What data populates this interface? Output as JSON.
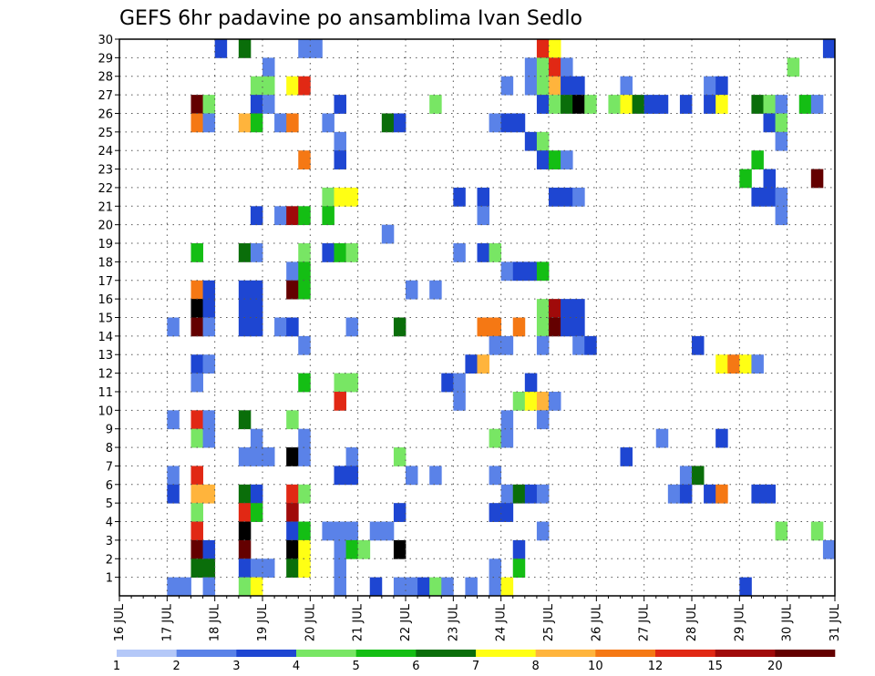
{
  "chart_data": {
    "type": "heatmap",
    "title": "GEFS 6hr padavine po ansamblima Ivan Sedlo",
    "xlabel": "",
    "ylabel": "",
    "x_ticks": [
      "16 JUL",
      "17 JUL",
      "18 JUL",
      "19 JUL",
      "20 JUL",
      "21 JUL",
      "22 JUL",
      "23 JUL",
      "24 JUL",
      "25 JUL",
      "26 JUL",
      "27 JUL",
      "28 JUL",
      "29 JUL",
      "30 JUL",
      "31 JUL"
    ],
    "x_unit": "6hr step",
    "xlim": [
      0,
      60
    ],
    "y_ticks": [
      1,
      2,
      3,
      4,
      5,
      6,
      7,
      8,
      9,
      10,
      11,
      12,
      13,
      14,
      15,
      16,
      17,
      18,
      19,
      20,
      21,
      22,
      23,
      24,
      25,
      26,
      27,
      28,
      29,
      30
    ],
    "ylim": [
      0,
      30
    ],
    "grid": true,
    "colorbar": {
      "placement": "bottom",
      "boundaries": [
        "1",
        "2",
        "3",
        "4",
        "5",
        "6",
        "7",
        "8",
        "10",
        "12",
        "15",
        "20"
      ],
      "colors": [
        "#b4c8f8",
        "#5a82e8",
        "#1e46d2",
        "#78e664",
        "#14be14",
        "#0a6e0a",
        "#ffff14",
        "#ffb43c",
        "#f57814",
        "#e12814",
        "#a00a0a",
        "#640000"
      ]
    },
    "cells": [
      {
        "x": 8,
        "y": 29,
        "c": 2
      },
      {
        "x": 10,
        "y": 29,
        "c": 5
      },
      {
        "x": 15,
        "y": 29,
        "c": 1
      },
      {
        "x": 16,
        "y": 29,
        "c": 1
      },
      {
        "x": 35,
        "y": 29,
        "c": 9
      },
      {
        "x": 36,
        "y": 29,
        "c": 6
      },
      {
        "x": 59,
        "y": 29,
        "c": 2
      },
      {
        "x": 12,
        "y": 28,
        "c": 1
      },
      {
        "x": 34,
        "y": 28,
        "c": 1
      },
      {
        "x": 35,
        "y": 28,
        "c": 3
      },
      {
        "x": 36,
        "y": 28,
        "c": 9
      },
      {
        "x": 37,
        "y": 28,
        "c": 1
      },
      {
        "x": 56,
        "y": 28,
        "c": 3
      },
      {
        "x": 11,
        "y": 27,
        "c": 3
      },
      {
        "x": 12,
        "y": 27,
        "c": 3
      },
      {
        "x": 14,
        "y": 27,
        "c": 6
      },
      {
        "x": 15,
        "y": 27,
        "c": 9
      },
      {
        "x": 32,
        "y": 27,
        "c": 1
      },
      {
        "x": 34,
        "y": 27,
        "c": 1
      },
      {
        "x": 35,
        "y": 27,
        "c": 3
      },
      {
        "x": 36,
        "y": 27,
        "c": 7
      },
      {
        "x": 37,
        "y": 27,
        "c": 2
      },
      {
        "x": 38,
        "y": 27,
        "c": 2
      },
      {
        "x": 42,
        "y": 27,
        "c": 1
      },
      {
        "x": 49,
        "y": 27,
        "c": 1
      },
      {
        "x": 50,
        "y": 27,
        "c": 2
      },
      {
        "x": 6,
        "y": 26,
        "c": 11
      },
      {
        "x": 7,
        "y": 26,
        "c": 3
      },
      {
        "x": 11,
        "y": 26,
        "c": 2
      },
      {
        "x": 12,
        "y": 26,
        "c": 1
      },
      {
        "x": 18,
        "y": 26,
        "c": 2
      },
      {
        "x": 26,
        "y": 26,
        "c": 3
      },
      {
        "x": 35,
        "y": 26,
        "c": 2
      },
      {
        "x": 36,
        "y": 26,
        "c": 3
      },
      {
        "x": 37,
        "y": 26,
        "c": 5
      },
      {
        "x": 38,
        "y": 26,
        "c": 12
      },
      {
        "x": 39,
        "y": 26,
        "c": 3
      },
      {
        "x": 41,
        "y": 26,
        "c": 3
      },
      {
        "x": 42,
        "y": 26,
        "c": 6
      },
      {
        "x": 43,
        "y": 26,
        "c": 5
      },
      {
        "x": 44,
        "y": 26,
        "c": 2
      },
      {
        "x": 45,
        "y": 26,
        "c": 2
      },
      {
        "x": 47,
        "y": 26,
        "c": 2
      },
      {
        "x": 49,
        "y": 26,
        "c": 2
      },
      {
        "x": 50,
        "y": 26,
        "c": 6
      },
      {
        "x": 53,
        "y": 26,
        "c": 5
      },
      {
        "x": 54,
        "y": 26,
        "c": 3
      },
      {
        "x": 55,
        "y": 26,
        "c": 1
      },
      {
        "x": 57,
        "y": 26,
        "c": 4
      },
      {
        "x": 58,
        "y": 26,
        "c": 1
      },
      {
        "x": 6,
        "y": 25,
        "c": 8
      },
      {
        "x": 7,
        "y": 25,
        "c": 1
      },
      {
        "x": 10,
        "y": 25,
        "c": 7
      },
      {
        "x": 11,
        "y": 25,
        "c": 4
      },
      {
        "x": 13,
        "y": 25,
        "c": 1
      },
      {
        "x": 14,
        "y": 25,
        "c": 8
      },
      {
        "x": 17,
        "y": 25,
        "c": 1
      },
      {
        "x": 22,
        "y": 25,
        "c": 5
      },
      {
        "x": 23,
        "y": 25,
        "c": 2
      },
      {
        "x": 31,
        "y": 25,
        "c": 1
      },
      {
        "x": 32,
        "y": 25,
        "c": 2
      },
      {
        "x": 33,
        "y": 25,
        "c": 2
      },
      {
        "x": 54,
        "y": 25,
        "c": 2
      },
      {
        "x": 55,
        "y": 25,
        "c": 3
      },
      {
        "x": 18,
        "y": 24,
        "c": 1
      },
      {
        "x": 34,
        "y": 24,
        "c": 2
      },
      {
        "x": 35,
        "y": 24,
        "c": 3
      },
      {
        "x": 55,
        "y": 24,
        "c": 1
      },
      {
        "x": 15,
        "y": 23,
        "c": 8
      },
      {
        "x": 18,
        "y": 23,
        "c": 2
      },
      {
        "x": 35,
        "y": 23,
        "c": 2
      },
      {
        "x": 36,
        "y": 23,
        "c": 4
      },
      {
        "x": 37,
        "y": 23,
        "c": 1
      },
      {
        "x": 53,
        "y": 23,
        "c": 4
      },
      {
        "x": 52,
        "y": 22,
        "c": 4
      },
      {
        "x": 54,
        "y": 22,
        "c": 2
      },
      {
        "x": 58,
        "y": 22,
        "c": 11
      },
      {
        "x": 17,
        "y": 21,
        "c": 3
      },
      {
        "x": 18,
        "y": 21,
        "c": 6
      },
      {
        "x": 19,
        "y": 21,
        "c": 6
      },
      {
        "x": 28,
        "y": 21,
        "c": 2
      },
      {
        "x": 30,
        "y": 21,
        "c": 2
      },
      {
        "x": 36,
        "y": 21,
        "c": 2
      },
      {
        "x": 37,
        "y": 21,
        "c": 2
      },
      {
        "x": 38,
        "y": 21,
        "c": 1
      },
      {
        "x": 53,
        "y": 21,
        "c": 2
      },
      {
        "x": 54,
        "y": 21,
        "c": 2
      },
      {
        "x": 55,
        "y": 21,
        "c": 1
      },
      {
        "x": 11,
        "y": 20,
        "c": 2
      },
      {
        "x": 13,
        "y": 20,
        "c": 1
      },
      {
        "x": 14,
        "y": 20,
        "c": 10
      },
      {
        "x": 15,
        "y": 20,
        "c": 4
      },
      {
        "x": 17,
        "y": 20,
        "c": 4
      },
      {
        "x": 30,
        "y": 20,
        "c": 1
      },
      {
        "x": 55,
        "y": 20,
        "c": 1
      },
      {
        "x": 22,
        "y": 19,
        "c": 1
      },
      {
        "x": 6,
        "y": 18,
        "c": 4
      },
      {
        "x": 10,
        "y": 18,
        "c": 5
      },
      {
        "x": 11,
        "y": 18,
        "c": 1
      },
      {
        "x": 15,
        "y": 18,
        "c": 3
      },
      {
        "x": 17,
        "y": 18,
        "c": 2
      },
      {
        "x": 18,
        "y": 18,
        "c": 4
      },
      {
        "x": 19,
        "y": 18,
        "c": 3
      },
      {
        "x": 28,
        "y": 18,
        "c": 1
      },
      {
        "x": 30,
        "y": 18,
        "c": 2
      },
      {
        "x": 31,
        "y": 18,
        "c": 3
      },
      {
        "x": 14,
        "y": 17,
        "c": 1
      },
      {
        "x": 15,
        "y": 17,
        "c": 4
      },
      {
        "x": 32,
        "y": 17,
        "c": 1
      },
      {
        "x": 33,
        "y": 17,
        "c": 2
      },
      {
        "x": 34,
        "y": 17,
        "c": 2
      },
      {
        "x": 35,
        "y": 17,
        "c": 4
      },
      {
        "x": 6,
        "y": 16,
        "c": 8
      },
      {
        "x": 7,
        "y": 16,
        "c": 2
      },
      {
        "x": 10,
        "y": 16,
        "c": 2
      },
      {
        "x": 11,
        "y": 16,
        "c": 2
      },
      {
        "x": 14,
        "y": 16,
        "c": 11
      },
      {
        "x": 15,
        "y": 16,
        "c": 4
      },
      {
        "x": 24,
        "y": 16,
        "c": 1
      },
      {
        "x": 26,
        "y": 16,
        "c": 1
      },
      {
        "x": 6,
        "y": 15,
        "c": 12
      },
      {
        "x": 7,
        "y": 15,
        "c": 2
      },
      {
        "x": 10,
        "y": 15,
        "c": 2
      },
      {
        "x": 11,
        "y": 15,
        "c": 2
      },
      {
        "x": 35,
        "y": 15,
        "c": 3
      },
      {
        "x": 36,
        "y": 15,
        "c": 10
      },
      {
        "x": 37,
        "y": 15,
        "c": 2
      },
      {
        "x": 38,
        "y": 15,
        "c": 2
      },
      {
        "x": 4,
        "y": 14,
        "c": 1
      },
      {
        "x": 6,
        "y": 14,
        "c": 11
      },
      {
        "x": 7,
        "y": 14,
        "c": 1
      },
      {
        "x": 10,
        "y": 14,
        "c": 2
      },
      {
        "x": 11,
        "y": 14,
        "c": 2
      },
      {
        "x": 13,
        "y": 14,
        "c": 1
      },
      {
        "x": 14,
        "y": 14,
        "c": 2
      },
      {
        "x": 19,
        "y": 14,
        "c": 1
      },
      {
        "x": 23,
        "y": 14,
        "c": 5
      },
      {
        "x": 30,
        "y": 14,
        "c": 8
      },
      {
        "x": 31,
        "y": 14,
        "c": 8
      },
      {
        "x": 33,
        "y": 14,
        "c": 8
      },
      {
        "x": 35,
        "y": 14,
        "c": 3
      },
      {
        "x": 36,
        "y": 14,
        "c": 11
      },
      {
        "x": 37,
        "y": 14,
        "c": 2
      },
      {
        "x": 38,
        "y": 14,
        "c": 2
      },
      {
        "x": 15,
        "y": 13,
        "c": 1
      },
      {
        "x": 31,
        "y": 13,
        "c": 1
      },
      {
        "x": 32,
        "y": 13,
        "c": 1
      },
      {
        "x": 35,
        "y": 13,
        "c": 1
      },
      {
        "x": 38,
        "y": 13,
        "c": 1
      },
      {
        "x": 39,
        "y": 13,
        "c": 2
      },
      {
        "x": 48,
        "y": 13,
        "c": 2
      },
      {
        "x": 6,
        "y": 12,
        "c": 2
      },
      {
        "x": 7,
        "y": 12,
        "c": 1
      },
      {
        "x": 29,
        "y": 12,
        "c": 2
      },
      {
        "x": 30,
        "y": 12,
        "c": 7
      },
      {
        "x": 50,
        "y": 12,
        "c": 6
      },
      {
        "x": 51,
        "y": 12,
        "c": 8
      },
      {
        "x": 52,
        "y": 12,
        "c": 6
      },
      {
        "x": 53,
        "y": 12,
        "c": 1
      },
      {
        "x": 6,
        "y": 11,
        "c": 1
      },
      {
        "x": 15,
        "y": 11,
        "c": 4
      },
      {
        "x": 18,
        "y": 11,
        "c": 3
      },
      {
        "x": 19,
        "y": 11,
        "c": 3
      },
      {
        "x": 27,
        "y": 11,
        "c": 2
      },
      {
        "x": 28,
        "y": 11,
        "c": 1
      },
      {
        "x": 34,
        "y": 11,
        "c": 2
      },
      {
        "x": 18,
        "y": 10,
        "c": 9
      },
      {
        "x": 28,
        "y": 10,
        "c": 1
      },
      {
        "x": 33,
        "y": 10,
        "c": 3
      },
      {
        "x": 34,
        "y": 10,
        "c": 6
      },
      {
        "x": 35,
        "y": 10,
        "c": 7
      },
      {
        "x": 36,
        "y": 10,
        "c": 1
      },
      {
        "x": 4,
        "y": 9,
        "c": 1
      },
      {
        "x": 6,
        "y": 9,
        "c": 9
      },
      {
        "x": 7,
        "y": 9,
        "c": 1
      },
      {
        "x": 10,
        "y": 9,
        "c": 5
      },
      {
        "x": 14,
        "y": 9,
        "c": 3
      },
      {
        "x": 32,
        "y": 9,
        "c": 1
      },
      {
        "x": 35,
        "y": 9,
        "c": 1
      },
      {
        "x": 6,
        "y": 8,
        "c": 3
      },
      {
        "x": 7,
        "y": 8,
        "c": 1
      },
      {
        "x": 11,
        "y": 8,
        "c": 1
      },
      {
        "x": 15,
        "y": 8,
        "c": 1
      },
      {
        "x": 31,
        "y": 8,
        "c": 3
      },
      {
        "x": 32,
        "y": 8,
        "c": 1
      },
      {
        "x": 45,
        "y": 8,
        "c": 1
      },
      {
        "x": 50,
        "y": 8,
        "c": 2
      },
      {
        "x": 10,
        "y": 7,
        "c": 1
      },
      {
        "x": 11,
        "y": 7,
        "c": 1
      },
      {
        "x": 12,
        "y": 7,
        "c": 1
      },
      {
        "x": 14,
        "y": 7,
        "c": 12
      },
      {
        "x": 15,
        "y": 7,
        "c": 1
      },
      {
        "x": 19,
        "y": 7,
        "c": 1
      },
      {
        "x": 23,
        "y": 7,
        "c": 3
      },
      {
        "x": 42,
        "y": 7,
        "c": 2
      },
      {
        "x": 4,
        "y": 6,
        "c": 1
      },
      {
        "x": 6,
        "y": 6,
        "c": 9
      },
      {
        "x": 18,
        "y": 6,
        "c": 2
      },
      {
        "x": 19,
        "y": 6,
        "c": 2
      },
      {
        "x": 24,
        "y": 6,
        "c": 1
      },
      {
        "x": 26,
        "y": 6,
        "c": 1
      },
      {
        "x": 31,
        "y": 6,
        "c": 1
      },
      {
        "x": 47,
        "y": 6,
        "c": 1
      },
      {
        "x": 48,
        "y": 6,
        "c": 5
      },
      {
        "x": 4,
        "y": 5,
        "c": 2
      },
      {
        "x": 6,
        "y": 5,
        "c": 7
      },
      {
        "x": 7,
        "y": 5,
        "c": 7
      },
      {
        "x": 10,
        "y": 5,
        "c": 5
      },
      {
        "x": 11,
        "y": 5,
        "c": 2
      },
      {
        "x": 14,
        "y": 5,
        "c": 9
      },
      {
        "x": 15,
        "y": 5,
        "c": 3
      },
      {
        "x": 32,
        "y": 5,
        "c": 1
      },
      {
        "x": 33,
        "y": 5,
        "c": 5
      },
      {
        "x": 34,
        "y": 5,
        "c": 2
      },
      {
        "x": 35,
        "y": 5,
        "c": 1
      },
      {
        "x": 46,
        "y": 5,
        "c": 1
      },
      {
        "x": 47,
        "y": 5,
        "c": 2
      },
      {
        "x": 49,
        "y": 5,
        "c": 2
      },
      {
        "x": 50,
        "y": 5,
        "c": 8
      },
      {
        "x": 53,
        "y": 5,
        "c": 2
      },
      {
        "x": 54,
        "y": 5,
        "c": 2
      },
      {
        "x": 6,
        "y": 4,
        "c": 3
      },
      {
        "x": 10,
        "y": 4,
        "c": 9
      },
      {
        "x": 11,
        "y": 4,
        "c": 4
      },
      {
        "x": 14,
        "y": 4,
        "c": 10
      },
      {
        "x": 23,
        "y": 4,
        "c": 2
      },
      {
        "x": 31,
        "y": 4,
        "c": 2
      },
      {
        "x": 32,
        "y": 4,
        "c": 2
      },
      {
        "x": 6,
        "y": 3,
        "c": 9
      },
      {
        "x": 10,
        "y": 3,
        "c": 12
      },
      {
        "x": 14,
        "y": 3,
        "c": 2
      },
      {
        "x": 15,
        "y": 3,
        "c": 4
      },
      {
        "x": 17,
        "y": 3,
        "c": 1
      },
      {
        "x": 18,
        "y": 3,
        "c": 1
      },
      {
        "x": 19,
        "y": 3,
        "c": 1
      },
      {
        "x": 21,
        "y": 3,
        "c": 1
      },
      {
        "x": 22,
        "y": 3,
        "c": 1
      },
      {
        "x": 35,
        "y": 3,
        "c": 1
      },
      {
        "x": 55,
        "y": 3,
        "c": 3
      },
      {
        "x": 58,
        "y": 3,
        "c": 3
      },
      {
        "x": 6,
        "y": 2,
        "c": 11
      },
      {
        "x": 7,
        "y": 2,
        "c": 2
      },
      {
        "x": 10,
        "y": 2,
        "c": 11
      },
      {
        "x": 14,
        "y": 2,
        "c": 12
      },
      {
        "x": 15,
        "y": 2,
        "c": 6
      },
      {
        "x": 18,
        "y": 2,
        "c": 1
      },
      {
        "x": 19,
        "y": 2,
        "c": 4
      },
      {
        "x": 20,
        "y": 2,
        "c": 3
      },
      {
        "x": 23,
        "y": 2,
        "c": 12
      },
      {
        "x": 33,
        "y": 2,
        "c": 2
      },
      {
        "x": 59,
        "y": 2,
        "c": 1
      },
      {
        "x": 6,
        "y": 1,
        "c": 5
      },
      {
        "x": 7,
        "y": 1,
        "c": 5
      },
      {
        "x": 10,
        "y": 1,
        "c": 2
      },
      {
        "x": 11,
        "y": 1,
        "c": 1
      },
      {
        "x": 12,
        "y": 1,
        "c": 1
      },
      {
        "x": 14,
        "y": 1,
        "c": 5
      },
      {
        "x": 15,
        "y": 1,
        "c": 6
      },
      {
        "x": 18,
        "y": 1,
        "c": 1
      },
      {
        "x": 31,
        "y": 1,
        "c": 1
      },
      {
        "x": 33,
        "y": 1,
        "c": 4
      },
      {
        "x": 4,
        "y": 0,
        "c": 1
      },
      {
        "x": 5,
        "y": 0,
        "c": 1
      },
      {
        "x": 7,
        "y": 0,
        "c": 1
      },
      {
        "x": 10,
        "y": 0,
        "c": 3
      },
      {
        "x": 11,
        "y": 0,
        "c": 6
      },
      {
        "x": 18,
        "y": 0,
        "c": 1
      },
      {
        "x": 21,
        "y": 0,
        "c": 2
      },
      {
        "x": 23,
        "y": 0,
        "c": 1
      },
      {
        "x": 24,
        "y": 0,
        "c": 1
      },
      {
        "x": 25,
        "y": 0,
        "c": 2
      },
      {
        "x": 26,
        "y": 0,
        "c": 3
      },
      {
        "x": 27,
        "y": 0,
        "c": 1
      },
      {
        "x": 29,
        "y": 0,
        "c": 1
      },
      {
        "x": 31,
        "y": 0,
        "c": 1
      },
      {
        "x": 32,
        "y": 0,
        "c": 6
      },
      {
        "x": 52,
        "y": 0,
        "c": 2
      }
    ]
  }
}
